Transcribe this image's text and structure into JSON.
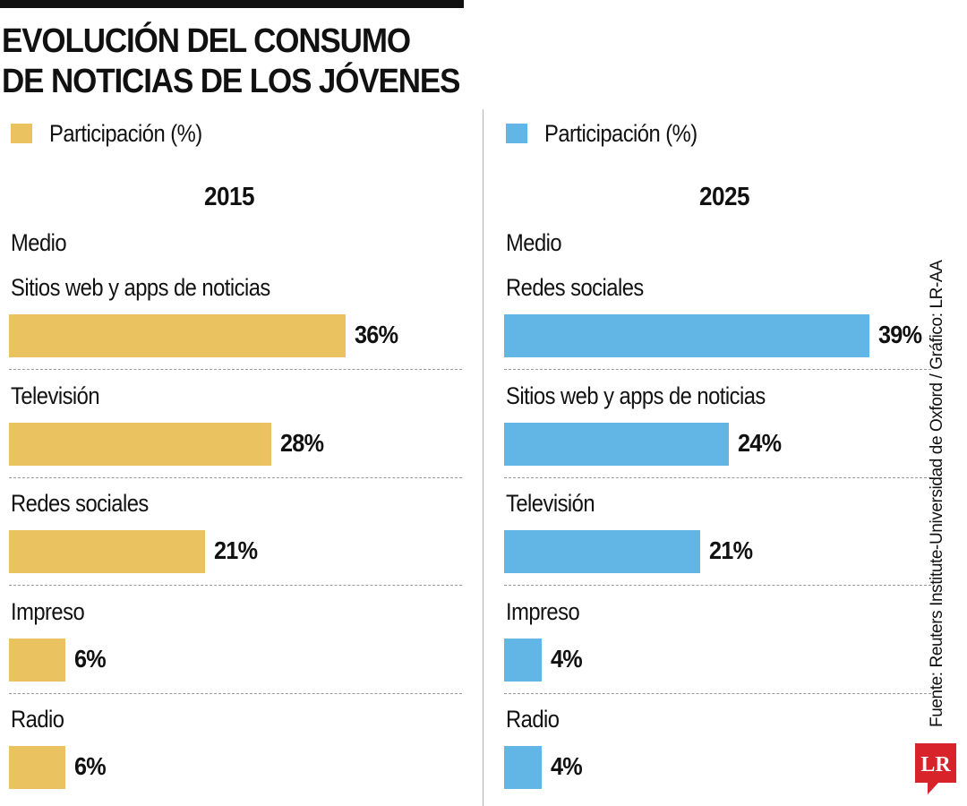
{
  "title_lines": [
    "EVOLUCIÓN DEL CONSUMO",
    "DE NOTICIAS DE LOS JÓVENES"
  ],
  "source": "Fuente: Reuters Institute-Universidad de Oxford / Gráfico: LR-AA",
  "logo_text": "LR",
  "colors": {
    "2015": "#EBC260",
    "2025": "#62B6E6",
    "logo": "#D8232A"
  },
  "chart_data": [
    {
      "type": "bar",
      "orientation": "horizontal",
      "title": "2015",
      "legend_label": "Participación (%)",
      "category_header": "Medio",
      "categories": [
        "Sitios web y apps de noticias",
        "Televisión",
        "Redes sociales",
        "Impreso",
        "Radio"
      ],
      "values": [
        36,
        28,
        21,
        6,
        6
      ],
      "value_labels": [
        "36%",
        "28%",
        "21%",
        "6%",
        "6%"
      ],
      "color": "#EBC260"
    },
    {
      "type": "bar",
      "orientation": "horizontal",
      "title": "2025",
      "legend_label": "Participación (%)",
      "category_header": "Medio",
      "categories": [
        "Redes sociales",
        "Sitios web y apps de noticias",
        "Televisión",
        "Impreso",
        "Radio"
      ],
      "values": [
        39,
        24,
        21,
        4,
        4
      ],
      "value_labels": [
        "39%",
        "24%",
        "21%",
        "4%",
        "4%"
      ],
      "color": "#62B6E6"
    }
  ]
}
